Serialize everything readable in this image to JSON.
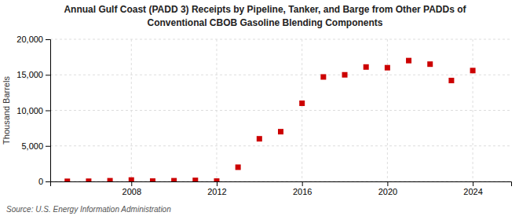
{
  "chart_data": {
    "type": "scatter",
    "title": "Annual Gulf Coast (PADD 3) Receipts by Pipeline, Tanker, and Barge from Other PADDs of",
    "subtitle": "Conventional CBOB Gasoline Blending Components",
    "y_label": "Thousand Barrels",
    "source": "Source: U.S. Energy Information Administration",
    "x": [
      2005,
      2006,
      2007,
      2008,
      2009,
      2010,
      2011,
      2012,
      2013,
      2014,
      2015,
      2016,
      2017,
      2018,
      2019,
      2020,
      2021,
      2022,
      2023,
      2024
    ],
    "values": [
      20,
      30,
      100,
      200,
      50,
      100,
      150,
      50,
      2000,
      6000,
      7000,
      11000,
      14700,
      15000,
      16100,
      16000,
      17000,
      16500,
      14200,
      15600
    ],
    "color": "#CC0000",
    "marker": "square",
    "ylim": [
      0,
      20000
    ],
    "yticks": [
      0,
      {
        "value": 5000,
        "label": "5,000"
      },
      {
        "value": 10000,
        "label": "10,000"
      },
      {
        "value": 15000,
        "label": "15,000"
      },
      {
        "value": 20000,
        "label": "20,000"
      }
    ],
    "xlim": [
      2004.2,
      2025.8
    ],
    "xticks": [
      2008,
      2012,
      2016,
      2020,
      2024
    ],
    "grid": true
  }
}
